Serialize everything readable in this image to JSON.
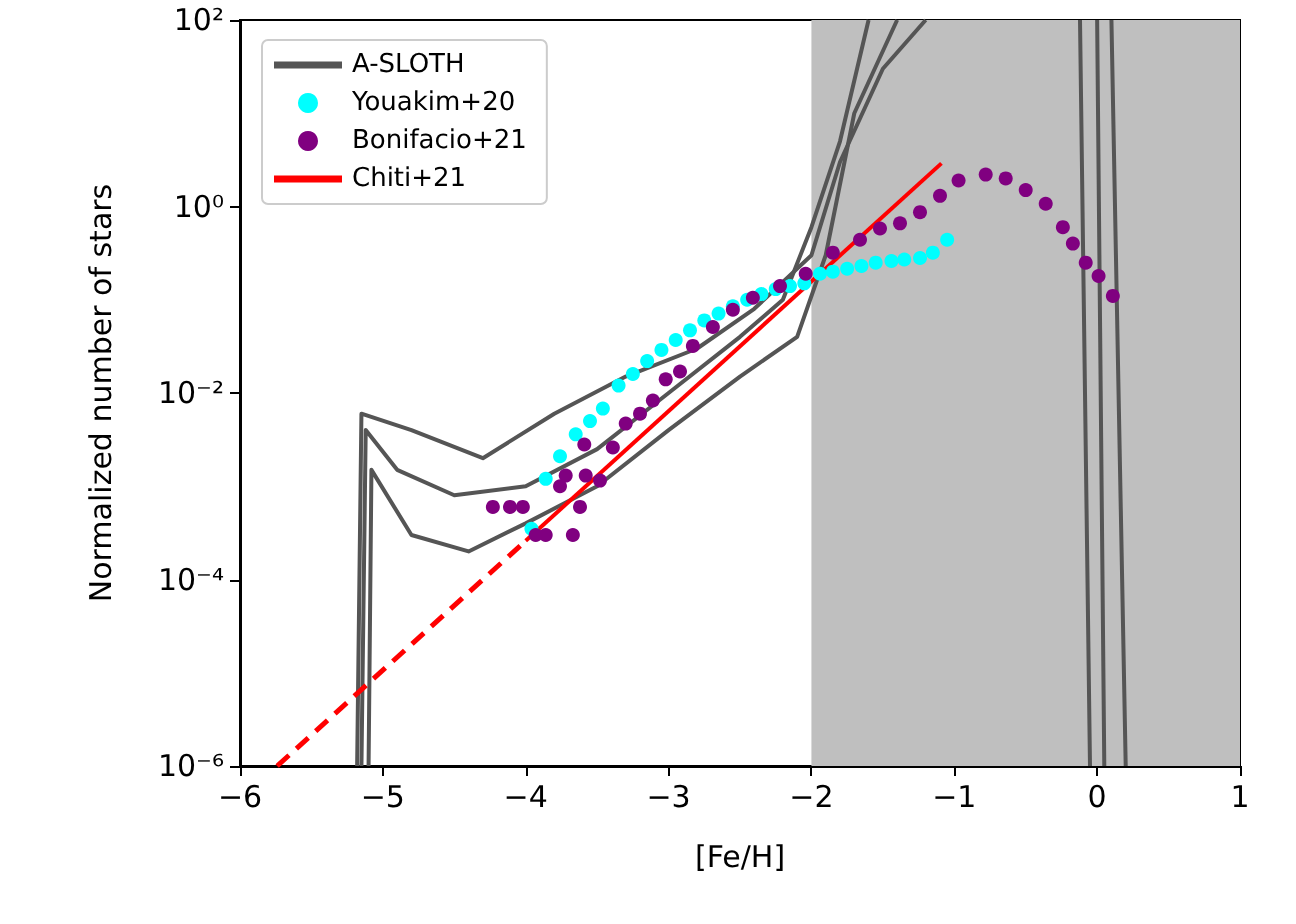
{
  "chart_data": {
    "type": "line",
    "xlabel": "[Fe/H]",
    "ylabel": "Normalized number of stars",
    "log": "y",
    "grid": false,
    "legend": "top left",
    "xlim": [
      -6,
      1
    ],
    "ylim": [
      1e-06,
      100
    ],
    "xticks": [
      {
        "value": -6,
        "label": "−6"
      },
      {
        "value": -5,
        "label": "−5"
      },
      {
        "value": -4,
        "label": "−4"
      },
      {
        "value": -3,
        "label": "−3"
      },
      {
        "value": -2,
        "label": "−2"
      },
      {
        "value": -1,
        "label": "−1"
      },
      0,
      1
    ],
    "yticks": [
      {
        "value": 1e-06,
        "label": "10⁻⁶"
      },
      {
        "value": 0.0001,
        "label": "10⁻⁴"
      },
      {
        "value": 0.01,
        "label": "10⁻²"
      },
      {
        "value": 1,
        "label": "10⁰"
      },
      {
        "value": 100,
        "label": "10²"
      }
    ],
    "bands": [
      {
        "axis": "x",
        "from": -2,
        "to": 1,
        "color": "#bfbfbf"
      }
    ],
    "series": [
      {
        "name": "A-SLOTH",
        "color": "#555555",
        "marker": "none",
        "x": [
          -5.15,
          -5.12,
          -4.9,
          -4.5,
          -4.0,
          -3.5,
          -3.0,
          -2.5,
          -2.2,
          -2.0,
          -1.8,
          -1.6,
          -1.0,
          -0.12,
          -0.05
        ],
        "values": [
          1e-06,
          0.004,
          0.0015,
          0.0008,
          0.001,
          0.0025,
          0.01,
          0.04,
          0.1,
          0.6,
          5,
          100,
          null,
          100,
          1e-06
        ]
      },
      {
        "color": "#555555",
        "marker": "none",
        "x": [
          -5.1,
          -5.08,
          -4.8,
          -4.4,
          -4.0,
          -3.5,
          -3.0,
          -2.5,
          -2.1,
          -1.9,
          -1.7,
          -1.4,
          -0.5,
          0.0,
          0.05
        ],
        "values": [
          1e-06,
          0.0015,
          0.0003,
          0.0002,
          0.0004,
          0.001,
          0.004,
          0.015,
          0.04,
          0.3,
          10,
          100,
          null,
          100,
          1e-06
        ]
      },
      {
        "color": "#555555",
        "marker": "none",
        "x": [
          -5.18,
          -5.15,
          -4.8,
          -4.3,
          -3.8,
          -3.3,
          -2.8,
          -2.4,
          -2.0,
          -1.8,
          -1.5,
          -1.2,
          -0.3,
          0.1,
          0.2
        ],
        "values": [
          1e-06,
          0.006,
          0.004,
          0.002,
          0.006,
          0.015,
          0.03,
          0.08,
          0.3,
          3,
          30,
          100,
          null,
          100,
          1e-06
        ]
      },
      {
        "name": "Youakim+20",
        "type": "scatter",
        "color": "#00ffff",
        "marker": "circle",
        "x": [
          -3.96,
          -3.86,
          -3.76,
          -3.65,
          -3.55,
          -3.46,
          -3.35,
          -3.25,
          -3.15,
          -3.05,
          -2.95,
          -2.85,
          -2.75,
          -2.65,
          -2.55,
          -2.45,
          -2.35,
          -2.25,
          -2.15,
          -2.05,
          -1.94,
          -1.85,
          -1.75,
          -1.65,
          -1.55,
          -1.44,
          -1.35,
          -1.24,
          -1.15,
          -1.05
        ],
        "values": [
          0.00035,
          0.0012,
          0.0021,
          0.0036,
          0.005,
          0.0068,
          0.012,
          0.016,
          0.022,
          0.029,
          0.037,
          0.047,
          0.06,
          0.071,
          0.085,
          0.1,
          0.115,
          0.13,
          0.14,
          0.15,
          0.19,
          0.2,
          0.215,
          0.23,
          0.25,
          0.26,
          0.27,
          0.28,
          0.32,
          0.44
        ]
      },
      {
        "name": "Bonifacio+21",
        "type": "scatter",
        "color": "#800080",
        "marker": "circle",
        "x": [
          -4.23,
          -4.11,
          -4.02,
          -3.93,
          -3.86,
          -3.67,
          -3.62,
          -3.76,
          -3.72,
          -3.58,
          -3.48,
          -3.59,
          -3.39,
          -3.3,
          -3.2,
          -3.11,
          -3.02,
          -2.92,
          -2.83,
          -2.69,
          -2.55,
          -2.41,
          -2.22,
          -2.04,
          -1.85,
          -1.66,
          -1.52,
          -1.38,
          -1.24,
          -1.1,
          -0.97,
          -0.78,
          -0.64,
          -0.5,
          -0.36,
          -0.24,
          -0.17,
          -0.08,
          0.01,
          0.11
        ],
        "values": [
          0.0006,
          0.0006,
          0.0006,
          0.0003,
          0.0003,
          0.0003,
          0.0006,
          0.001,
          0.0013,
          0.0013,
          0.00115,
          0.0028,
          0.0026,
          0.0047,
          0.006,
          0.0083,
          0.014,
          0.017,
          0.032,
          0.051,
          0.078,
          0.105,
          0.14,
          0.19,
          0.32,
          0.44,
          0.58,
          0.66,
          0.87,
          1.3,
          1.9,
          2.2,
          2.0,
          1.5,
          1.07,
          0.6,
          0.4,
          0.25,
          0.18,
          0.11
        ]
      },
      {
        "name": "Chiti+21",
        "color": "#ff0000",
        "marker": "none",
        "line_style": "solid",
        "x": [
          -4.0,
          -1.09
        ],
        "values": [
          0.00026,
          2.9
        ]
      },
      {
        "color": "#ff0000",
        "marker": "none",
        "line_style": "dashed",
        "x": [
          -5.74,
          -4.0
        ],
        "values": [
          1e-06,
          0.00026
        ]
      }
    ]
  }
}
